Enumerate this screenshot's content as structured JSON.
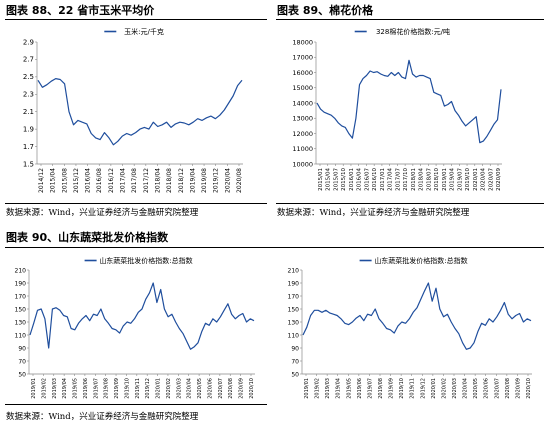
{
  "panels": [
    {
      "title": "图表 88、22 省市玉米平均价",
      "source": "数据来源：Wind，兴业证券经济与金融研究院整理"
    },
    {
      "title": "图表 89、棉花价格",
      "source": "数据来源：Wind，兴业证券经济与金融研究院整理"
    },
    {
      "title": "图表 90、山东蔬菜批发价格指数",
      "source": "数据来源：Wind，兴业证券经济与金融研究院整理"
    },
    {
      "title": "",
      "source": ""
    }
  ],
  "colors": {
    "line": "#1f4e9d",
    "axis": "#888888",
    "text": "#000000"
  },
  "chart_data": [
    {
      "type": "line",
      "title": "",
      "legend": "玉米:元/千克",
      "legend_position": "top-center",
      "y_ticks": [
        "2.9",
        "2.7",
        "2.5",
        "2.3",
        "2.1",
        "1.9",
        "1.7",
        "1.5"
      ],
      "ylim": [
        1.5,
        2.9
      ],
      "x_ticks": [
        "2014/12",
        "2015/04",
        "2015/08",
        "2015/12",
        "2016/04",
        "2016/08",
        "2016/12",
        "2017/04",
        "2017/08",
        "2017/12",
        "2018/04",
        "2018/08",
        "2018/12",
        "2019/04",
        "2019/08",
        "2019/12",
        "2020/04",
        "2020/08"
      ],
      "series": [
        {
          "name": "玉米:元/千克",
          "values": [
            2.46,
            2.38,
            2.41,
            2.45,
            2.48,
            2.47,
            2.42,
            2.1,
            1.95,
            2.0,
            1.98,
            1.96,
            1.85,
            1.8,
            1.78,
            1.86,
            1.8,
            1.72,
            1.76,
            1.82,
            1.85,
            1.83,
            1.86,
            1.9,
            1.92,
            1.9,
            1.98,
            1.93,
            1.95,
            1.98,
            1.92,
            1.96,
            1.98,
            1.97,
            1.95,
            1.98,
            2.02,
            2.0,
            2.03,
            2.05,
            2.02,
            2.06,
            2.12,
            2.2,
            2.28,
            2.4,
            2.46
          ]
        }
      ]
    },
    {
      "type": "line",
      "title": "",
      "legend": "328棉花价格指数:元/吨",
      "legend_position": "top-center",
      "y_ticks": [
        "18000",
        "17000",
        "16000",
        "15000",
        "14000",
        "13000",
        "12000",
        "11000",
        "10000"
      ],
      "ylim": [
        10000,
        18000
      ],
      "x_ticks": [
        "2015/01",
        "2015/04",
        "2015/07",
        "2015/10",
        "2016/01",
        "2016/04",
        "2016/07",
        "2016/10",
        "2017/01",
        "2017/04",
        "2017/07",
        "2017/10",
        "2018/01",
        "2018/04",
        "2018/07",
        "2018/10",
        "2019/01",
        "2019/04",
        "2019/07",
        "2019/10",
        "2020/01",
        "2020/04",
        "2020/07",
        "2020/09"
      ],
      "series": [
        {
          "name": "328棉花价格指数:元/吨",
          "values": [
            14000,
            13600,
            13400,
            13300,
            13200,
            13000,
            12700,
            12500,
            12400,
            12000,
            11700,
            13000,
            15200,
            15600,
            15800,
            16100,
            16000,
            16050,
            15900,
            15800,
            15750,
            16000,
            15800,
            16000,
            15700,
            15600,
            16800,
            15900,
            15700,
            15800,
            15800,
            15700,
            15600,
            14700,
            14600,
            14500,
            13800,
            13900,
            14100,
            13500,
            13200,
            12800,
            12500,
            12700,
            12900,
            13100,
            11400,
            11500,
            11800,
            12200,
            12600,
            12900,
            14900
          ]
        }
      ]
    },
    {
      "type": "line",
      "title": "",
      "legend": "山东蔬菜批发价格指数:总指数",
      "legend_position": "top-center",
      "y_ticks": [
        "210",
        "190",
        "170",
        "150",
        "130",
        "110",
        "90",
        "70",
        "50"
      ],
      "ylim": [
        50,
        210
      ],
      "x_ticks": [
        "2019/01",
        "2019/02",
        "2019/03",
        "2019/04",
        "2019/05",
        "2019/06",
        "2019/07",
        "2019/08",
        "2019/09",
        "2019/10",
        "2019/11",
        "2019/12",
        "2020/01",
        "2020/02",
        "2020/03",
        "2020/04",
        "2020/05",
        "2020/06",
        "2020/07",
        "2020/08",
        "2020/09",
        "2020/10"
      ],
      "series": [
        {
          "name": "山东蔬菜批发价格指数:总指数",
          "values": [
            110,
            128,
            148,
            150,
            135,
            90,
            150,
            152,
            148,
            140,
            138,
            120,
            118,
            128,
            135,
            140,
            132,
            142,
            140,
            150,
            135,
            128,
            120,
            118,
            113,
            124,
            130,
            128,
            135,
            145,
            150,
            165,
            175,
            190,
            160,
            180,
            150,
            138,
            142,
            130,
            120,
            112,
            100,
            88,
            92,
            98,
            115,
            128,
            125,
            135,
            130,
            138,
            148,
            158,
            142,
            135,
            140,
            143,
            130,
            135,
            132
          ]
        }
      ]
    },
    {
      "type": "line",
      "title": "",
      "legend": "山东蔬菜批发价格指数:总指数",
      "legend_position": "top-center",
      "y_ticks": [
        "210",
        "190",
        "170",
        "150",
        "130",
        "110",
        "90",
        "70",
        "50"
      ],
      "ylim": [
        50,
        210
      ],
      "x_ticks": [
        "2019/01",
        "2019/02",
        "2019/03",
        "2019/04",
        "2019/05",
        "2019/06",
        "2019/07",
        "2019/08",
        "2019/09",
        "2019/10",
        "2019/11",
        "2019/12",
        "2020/01",
        "2020/02",
        "2020/03",
        "2020/04",
        "2020/05",
        "2020/06",
        "2020/07",
        "2020/08",
        "2020/09",
        "2020/10"
      ],
      "series": [
        {
          "name": "山东蔬菜批发价格指数:总指数",
          "values": [
            110,
            122,
            140,
            148,
            148,
            145,
            148,
            144,
            142,
            140,
            135,
            128,
            126,
            130,
            136,
            140,
            132,
            142,
            140,
            150,
            135,
            128,
            120,
            118,
            113,
            124,
            130,
            128,
            135,
            145,
            152,
            165,
            178,
            190,
            162,
            182,
            150,
            138,
            142,
            130,
            120,
            112,
            98,
            88,
            90,
            98,
            115,
            128,
            125,
            135,
            130,
            138,
            148,
            160,
            142,
            135,
            140,
            143,
            130,
            135,
            132
          ]
        }
      ]
    }
  ]
}
